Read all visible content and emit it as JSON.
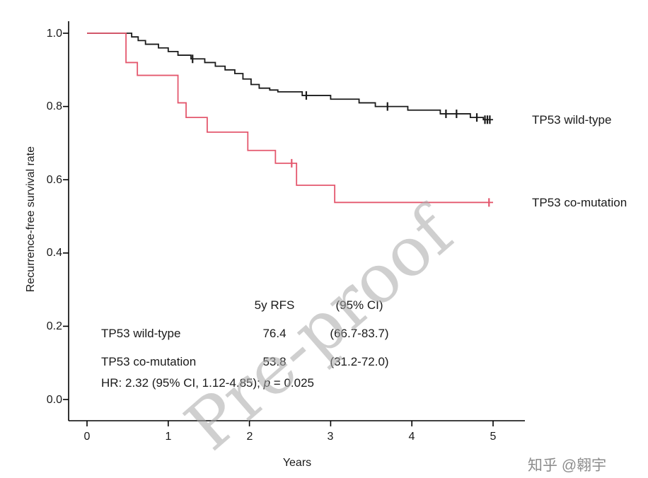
{
  "chart_data": {
    "type": "line",
    "subtype": "kaplan-meier-step",
    "title": "",
    "xlabel": "Years",
    "ylabel": "Recurrence-free survival rate",
    "xlim": [
      0,
      5
    ],
    "ylim": [
      0,
      1
    ],
    "grid": "off",
    "legend_position": "right-of-curve-end",
    "x_tick_values": [
      0,
      1,
      2,
      3,
      4,
      5
    ],
    "x_tick_labels": [
      "0",
      "1",
      "2",
      "3",
      "4",
      "5"
    ],
    "y_tick_values": [
      1.0,
      0.8,
      0.6,
      0.4,
      0.2,
      0.0
    ],
    "y_tick_labels": [
      "1.0",
      "0.8",
      "0.6",
      "0.4",
      "0.2",
      "0.0"
    ],
    "series": [
      {
        "name": "TP53 wild-type",
        "color": "#1a1a1a",
        "start": [
          0,
          1.0
        ],
        "drops": [
          [
            0.55,
            0.99
          ],
          [
            0.63,
            0.98
          ],
          [
            0.72,
            0.97
          ],
          [
            0.88,
            0.96
          ],
          [
            1.0,
            0.95
          ],
          [
            1.12,
            0.94
          ],
          [
            1.28,
            0.93
          ],
          [
            1.45,
            0.92
          ],
          [
            1.58,
            0.91
          ],
          [
            1.7,
            0.9
          ],
          [
            1.82,
            0.89
          ],
          [
            1.92,
            0.875
          ],
          [
            2.02,
            0.86
          ],
          [
            2.12,
            0.85
          ],
          [
            2.25,
            0.845
          ],
          [
            2.35,
            0.84
          ],
          [
            2.65,
            0.83
          ],
          [
            3.0,
            0.82
          ],
          [
            3.35,
            0.81
          ],
          [
            3.55,
            0.8
          ],
          [
            3.95,
            0.79
          ],
          [
            4.35,
            0.78
          ],
          [
            4.72,
            0.77
          ],
          [
            4.88,
            0.764
          ]
        ],
        "end_x": 5.0,
        "final_value": 0.764,
        "censors": [
          [
            1.3,
            0.93
          ],
          [
            2.7,
            0.83
          ],
          [
            3.7,
            0.8
          ],
          [
            4.42,
            0.78
          ],
          [
            4.55,
            0.78
          ],
          [
            4.8,
            0.77
          ],
          [
            4.9,
            0.764
          ],
          [
            4.93,
            0.764
          ],
          [
            4.96,
            0.764
          ]
        ]
      },
      {
        "name": "TP53 co-mutation",
        "color": "#e4586e",
        "start": [
          0,
          1.0
        ],
        "drops": [
          [
            0.48,
            0.92
          ],
          [
            0.62,
            0.885
          ],
          [
            1.12,
            0.81
          ],
          [
            1.22,
            0.77
          ],
          [
            1.48,
            0.73
          ],
          [
            1.98,
            0.68
          ],
          [
            2.32,
            0.645
          ],
          [
            2.58,
            0.585
          ],
          [
            3.05,
            0.538
          ]
        ],
        "end_x": 5.0,
        "final_value": 0.538,
        "censors": [
          [
            2.52,
            0.645
          ],
          [
            4.95,
            0.538
          ]
        ]
      }
    ],
    "annotation_table": {
      "header_value": "5y RFS",
      "header_ci": "(95% CI)",
      "rows": [
        {
          "label": "TP53 wild-type",
          "value": "76.4",
          "ci": "(66.7-83.7)"
        },
        {
          "label": "TP53 co-mutation",
          "value": "53.8",
          "ci": "(31.2-72.0)"
        }
      ],
      "footer_prefix": "HR: 2.32 (95% CI, 1.12-4.85); ",
      "footer_p": "p",
      "footer_rest": " = 0.025"
    }
  },
  "watermark": "Pre-proof",
  "credit": "知乎 @翱宇"
}
